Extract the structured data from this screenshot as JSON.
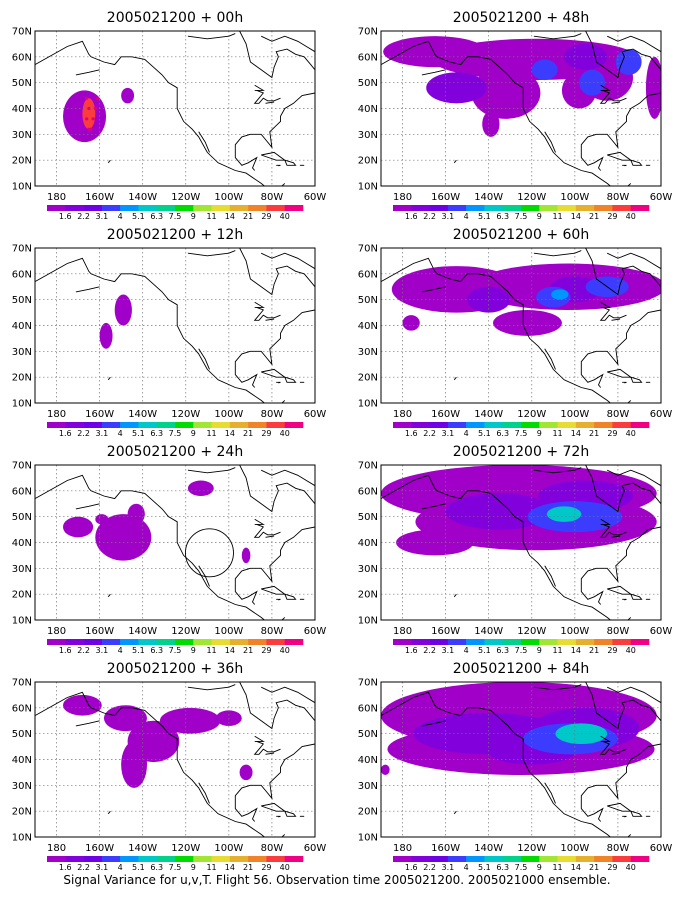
{
  "figure": {
    "caption": "Signal Variance for u,v,T. Flight 56. Observation time 2005021200. 2005021000 ensemble."
  },
  "panels": [
    {
      "title": "2005021200 + 00h",
      "lead": "00h"
    },
    {
      "title": "2005021200 + 12h",
      "lead": "12h"
    },
    {
      "title": "2005021200 + 24h",
      "lead": "24h"
    },
    {
      "title": "2005021200 + 36h",
      "lead": "36h"
    },
    {
      "title": "2005021200 + 48h",
      "lead": "48h"
    },
    {
      "title": "2005021200 + 60h",
      "lead": "60h"
    },
    {
      "title": "2005021200 + 72h",
      "lead": "72h"
    },
    {
      "title": "2005021200 + 84h",
      "lead": "84h"
    }
  ],
  "map": {
    "lon_range": [
      -190,
      -60
    ],
    "lat_range": [
      10,
      70
    ],
    "lon_ticks": [
      {
        "lon": -180,
        "label": "180"
      },
      {
        "lon": -160,
        "label": "160W"
      },
      {
        "lon": -140,
        "label": "140W"
      },
      {
        "lon": -120,
        "label": "120W"
      },
      {
        "lon": -100,
        "label": "100W"
      },
      {
        "lon": -80,
        "label": "80W"
      },
      {
        "lon": -60,
        "label": "60W"
      }
    ],
    "lat_ticks": [
      {
        "lat": 10,
        "label": "10N"
      },
      {
        "lat": 20,
        "label": "20N"
      },
      {
        "lat": 30,
        "label": "30N"
      },
      {
        "lat": 40,
        "label": "40N"
      },
      {
        "lat": 50,
        "label": "50N"
      },
      {
        "lat": 60,
        "label": "60N"
      },
      {
        "lat": 70,
        "label": "70N"
      }
    ],
    "grid": true
  },
  "colorbar": {
    "labels": [
      "1.6",
      "2.2",
      "3.1",
      "4",
      "5.1",
      "6.3",
      "7.5",
      "9",
      "11",
      "14",
      "21",
      "29",
      "40"
    ],
    "colors": [
      "#a000c8",
      "#8200dc",
      "#6e00e6",
      "#3c3cff",
      "#0096ff",
      "#00c8c8",
      "#00d28c",
      "#00dc00",
      "#a0e632",
      "#e6dc32",
      "#e6af2d",
      "#f08228",
      "#fa3c3c",
      "#f00082"
    ]
  },
  "fields": [
    [
      {
        "level": 0,
        "blobs": [
          [
            -167,
            37,
            10,
            10
          ],
          [
            -147,
            45,
            3,
            3
          ]
        ]
      },
      {
        "level": 12,
        "blobs": [
          [
            -165,
            38,
            3,
            6
          ]
        ]
      }
    ],
    [
      {
        "level": 0,
        "blobs": [
          [
            -157,
            36,
            3,
            5
          ],
          [
            -149,
            46,
            4,
            6
          ]
        ]
      }
    ],
    [
      {
        "level": 0,
        "blobs": [
          [
            -170,
            46,
            7,
            4
          ],
          [
            -159,
            49,
            3,
            2
          ],
          [
            -149,
            42,
            13,
            9
          ],
          [
            -143,
            51,
            4,
            4
          ],
          [
            -113,
            61,
            6,
            3
          ],
          [
            -92,
            35,
            2,
            3
          ]
        ]
      }
    ],
    [
      {
        "level": 0,
        "blobs": [
          [
            -168,
            61,
            9,
            4
          ],
          [
            -148,
            56,
            10,
            5
          ],
          [
            -135,
            47,
            12,
            8
          ],
          [
            -144,
            38,
            6,
            9
          ],
          [
            -118,
            55,
            14,
            5
          ],
          [
            -100,
            56,
            6,
            3
          ],
          [
            -92,
            35,
            3,
            3
          ]
        ]
      }
    ],
    [
      {
        "level": 0,
        "blobs": [
          [
            -165,
            62,
            24,
            6
          ],
          [
            -118,
            59,
            48,
            8
          ],
          [
            -132,
            46,
            16,
            10
          ],
          [
            -139,
            34,
            4,
            5
          ],
          [
            -98,
            47,
            8,
            7
          ],
          [
            -85,
            52,
            12,
            9
          ],
          [
            -63,
            48,
            4,
            12
          ]
        ]
      },
      {
        "level": 1,
        "blobs": [
          [
            -155,
            48,
            14,
            6
          ],
          [
            -95,
            60,
            10,
            5
          ]
        ]
      },
      {
        "level": 3,
        "blobs": [
          [
            -114,
            55,
            6,
            4
          ],
          [
            -92,
            50,
            6,
            5
          ],
          [
            -75,
            58,
            6,
            5
          ]
        ]
      }
    ],
    [
      {
        "level": 0,
        "blobs": [
          [
            -155,
            54,
            30,
            9
          ],
          [
            -103,
            55,
            45,
            9
          ],
          [
            -122,
            41,
            16,
            5
          ],
          [
            -176,
            41,
            4,
            3
          ]
        ]
      },
      {
        "level": 1,
        "blobs": [
          [
            -140,
            50,
            10,
            5
          ],
          [
            -100,
            54,
            12,
            5
          ]
        ]
      },
      {
        "level": 3,
        "blobs": [
          [
            -110,
            51,
            8,
            4
          ],
          [
            -85,
            55,
            10,
            4
          ]
        ]
      },
      {
        "level": 4,
        "blobs": [
          [
            -107,
            52,
            4,
            2
          ]
        ]
      }
    ],
    [
      {
        "level": 0,
        "blobs": [
          [
            -126,
            59,
            64,
            11
          ],
          [
            -118,
            48,
            56,
            11
          ],
          [
            -165,
            40,
            18,
            5
          ]
        ]
      },
      {
        "level": 1,
        "blobs": [
          [
            -135,
            52,
            25,
            7
          ],
          [
            -95,
            58,
            22,
            6
          ]
        ]
      },
      {
        "level": 3,
        "blobs": [
          [
            -100,
            50,
            22,
            6
          ]
        ]
      },
      {
        "level": 5,
        "blobs": [
          [
            -105,
            51,
            8,
            3
          ]
        ]
      }
    ],
    [
      {
        "level": 0,
        "blobs": [
          [
            -126,
            57,
            64,
            13
          ],
          [
            -125,
            44,
            62,
            10
          ],
          [
            -188,
            36,
            2,
            2
          ]
        ]
      },
      {
        "level": 1,
        "blobs": [
          [
            -140,
            50,
            35,
            8
          ],
          [
            -95,
            52,
            25,
            8
          ],
          [
            -120,
            43,
            20,
            5
          ]
        ]
      },
      {
        "level": 3,
        "blobs": [
          [
            -102,
            48,
            22,
            6
          ]
        ]
      },
      {
        "level": 5,
        "blobs": [
          [
            -97,
            50,
            12,
            4
          ]
        ]
      }
    ]
  ],
  "coastlines": [
    [
      [
        -190,
        57
      ],
      [
        -175,
        64
      ],
      [
        -168,
        66
      ],
      [
        -165,
        61
      ],
      [
        -164,
        60
      ],
      [
        -158,
        58
      ],
      [
        -153,
        57
      ],
      [
        -150,
        60
      ],
      [
        -145,
        60
      ],
      [
        -139,
        59
      ],
      [
        -135,
        56
      ],
      [
        -131,
        53
      ],
      [
        -128,
        50
      ],
      [
        -124,
        48
      ],
      [
        -124,
        44
      ],
      [
        -124,
        40
      ],
      [
        -121,
        35
      ],
      [
        -117,
        32
      ],
      [
        -114,
        29
      ],
      [
        -110,
        23
      ],
      [
        -105,
        19
      ],
      [
        -97,
        16
      ],
      [
        -92,
        15
      ],
      [
        -85,
        11
      ],
      [
        -82,
        9
      ],
      [
        -78,
        8
      ],
      [
        -74,
        11
      ]
    ],
    [
      [
        -114,
        31
      ],
      [
        -111,
        27
      ],
      [
        -109,
        23
      ]
    ],
    [
      [
        -60,
        46
      ],
      [
        -66,
        45
      ],
      [
        -70,
        42
      ],
      [
        -74,
        40
      ],
      [
        -76,
        37
      ],
      [
        -76,
        35
      ],
      [
        -81,
        31
      ],
      [
        -80,
        25
      ],
      [
        -83,
        28
      ],
      [
        -85,
        30
      ],
      [
        -90,
        30
      ],
      [
        -94,
        29
      ],
      [
        -97,
        26
      ],
      [
        -97,
        21
      ],
      [
        -94,
        18
      ],
      [
        -91,
        19
      ],
      [
        -87,
        21
      ],
      [
        -89,
        17
      ],
      [
        -88,
        16
      ]
    ],
    [
      [
        -85,
        22
      ],
      [
        -79,
        23
      ],
      [
        -74,
        20
      ],
      [
        -78,
        20
      ],
      [
        -85,
        22
      ]
    ],
    [
      [
        -74,
        20
      ],
      [
        -70,
        19
      ],
      [
        -69,
        18
      ],
      [
        -73,
        18
      ],
      [
        -74,
        20
      ]
    ],
    [
      [
        -78,
        18
      ],
      [
        -76,
        18
      ],
      [
        -77,
        17.8
      ]
    ],
    [
      [
        -67,
        18
      ],
      [
        -65,
        18
      ]
    ],
    [
      [
        -95,
        70
      ],
      [
        -92,
        65
      ],
      [
        -90,
        58
      ],
      [
        -85,
        55
      ],
      [
        -80,
        52
      ],
      [
        -79,
        56
      ],
      [
        -77,
        60
      ],
      [
        -78,
        62
      ],
      [
        -73,
        63
      ],
      [
        -69,
        61
      ],
      [
        -65,
        60
      ],
      [
        -62,
        57
      ],
      [
        -60,
        55
      ]
    ],
    [
      [
        -140,
        70
      ],
      [
        -150,
        70
      ],
      [
        -156,
        71
      ]
    ],
    [
      [
        -87,
        47
      ],
      [
        -84,
        46
      ],
      [
        -86,
        44
      ],
      [
        -88,
        42
      ],
      [
        -86,
        42
      ],
      [
        -84,
        44
      ],
      [
        -82,
        43
      ],
      [
        -79,
        43
      ],
      [
        -76,
        44
      ]
    ],
    [
      [
        -88,
        49
      ],
      [
        -84,
        47
      ],
      [
        -88,
        47
      ]
    ],
    [
      [
        -83,
        42
      ],
      [
        -79,
        42.5
      ]
    ],
    [
      [
        -119,
        68
      ],
      [
        -110,
        67
      ],
      [
        -100,
        68
      ],
      [
        -97,
        69
      ]
    ],
    [
      [
        -85,
        68
      ],
      [
        -80,
        66
      ],
      [
        -74,
        68
      ],
      [
        -68,
        66
      ],
      [
        -64,
        64
      ],
      [
        -60,
        62
      ]
    ],
    [
      [
        -171,
        53
      ],
      [
        -165,
        54
      ],
      [
        -160,
        55
      ]
    ],
    [
      [
        -155,
        20
      ],
      [
        -156,
        19
      ]
    ]
  ]
}
